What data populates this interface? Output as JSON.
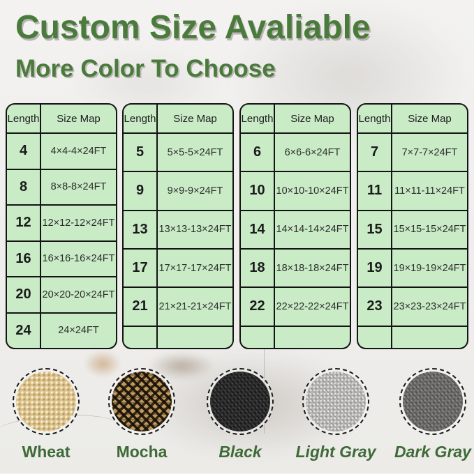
{
  "title": "Custom Size Avaliable",
  "subtitle": "More Color To Choose",
  "colors": {
    "heading_green": "#4a7b3c",
    "table_background": "#c9ebc6",
    "table_border": "#141414",
    "label_green": "#3e6a37"
  },
  "tables": [
    {
      "headers": [
        "Length",
        "Size Map"
      ],
      "rows": [
        [
          "4",
          "4×4-4×24FT"
        ],
        [
          "8",
          "8×8-8×24FT"
        ],
        [
          "12",
          "12×12-12×24FT"
        ],
        [
          "16",
          "16×16-16×24FT"
        ],
        [
          "20",
          "20×20-20×24FT"
        ],
        [
          "24",
          "24×24FT"
        ]
      ]
    },
    {
      "headers": [
        "Length",
        "Size Map"
      ],
      "rows": [
        [
          "5",
          "5×5-5×24FT"
        ],
        [
          "9",
          "9×9-9×24FT"
        ],
        [
          "13",
          "13×13-13×24FT"
        ],
        [
          "17",
          "17×17-17×24FT"
        ],
        [
          "21",
          "21×21-21×24FT"
        ],
        [
          "",
          ""
        ]
      ]
    },
    {
      "headers": [
        "Length",
        "Size Map"
      ],
      "rows": [
        [
          "6",
          "6×6-6×24FT"
        ],
        [
          "10",
          "10×10-10×24FT"
        ],
        [
          "14",
          "14×14-14×24FT"
        ],
        [
          "18",
          "18×18-18×24FT"
        ],
        [
          "22",
          "22×22-22×24FT"
        ],
        [
          "",
          ""
        ]
      ]
    },
    {
      "headers": [
        "Length",
        "Size Map"
      ],
      "rows": [
        [
          "7",
          "7×7-7×24FT"
        ],
        [
          "11",
          "11×11-11×24FT"
        ],
        [
          "15",
          "15×15-15×24FT"
        ],
        [
          "19",
          "19×19-19×24FT"
        ],
        [
          "23",
          "23×23-23×24FT"
        ],
        [
          "",
          ""
        ]
      ]
    }
  ],
  "swatches": [
    {
      "label": "Wheat",
      "color": "#dcc28b"
    },
    {
      "label": "Mocha",
      "color": "#8a6a3a"
    },
    {
      "label": "Black",
      "color": "#2e2e2e"
    },
    {
      "label": "Light Gray",
      "color": "#b5b4b2"
    },
    {
      "label": "Dark Gray",
      "color": "#6d6c6a"
    }
  ]
}
